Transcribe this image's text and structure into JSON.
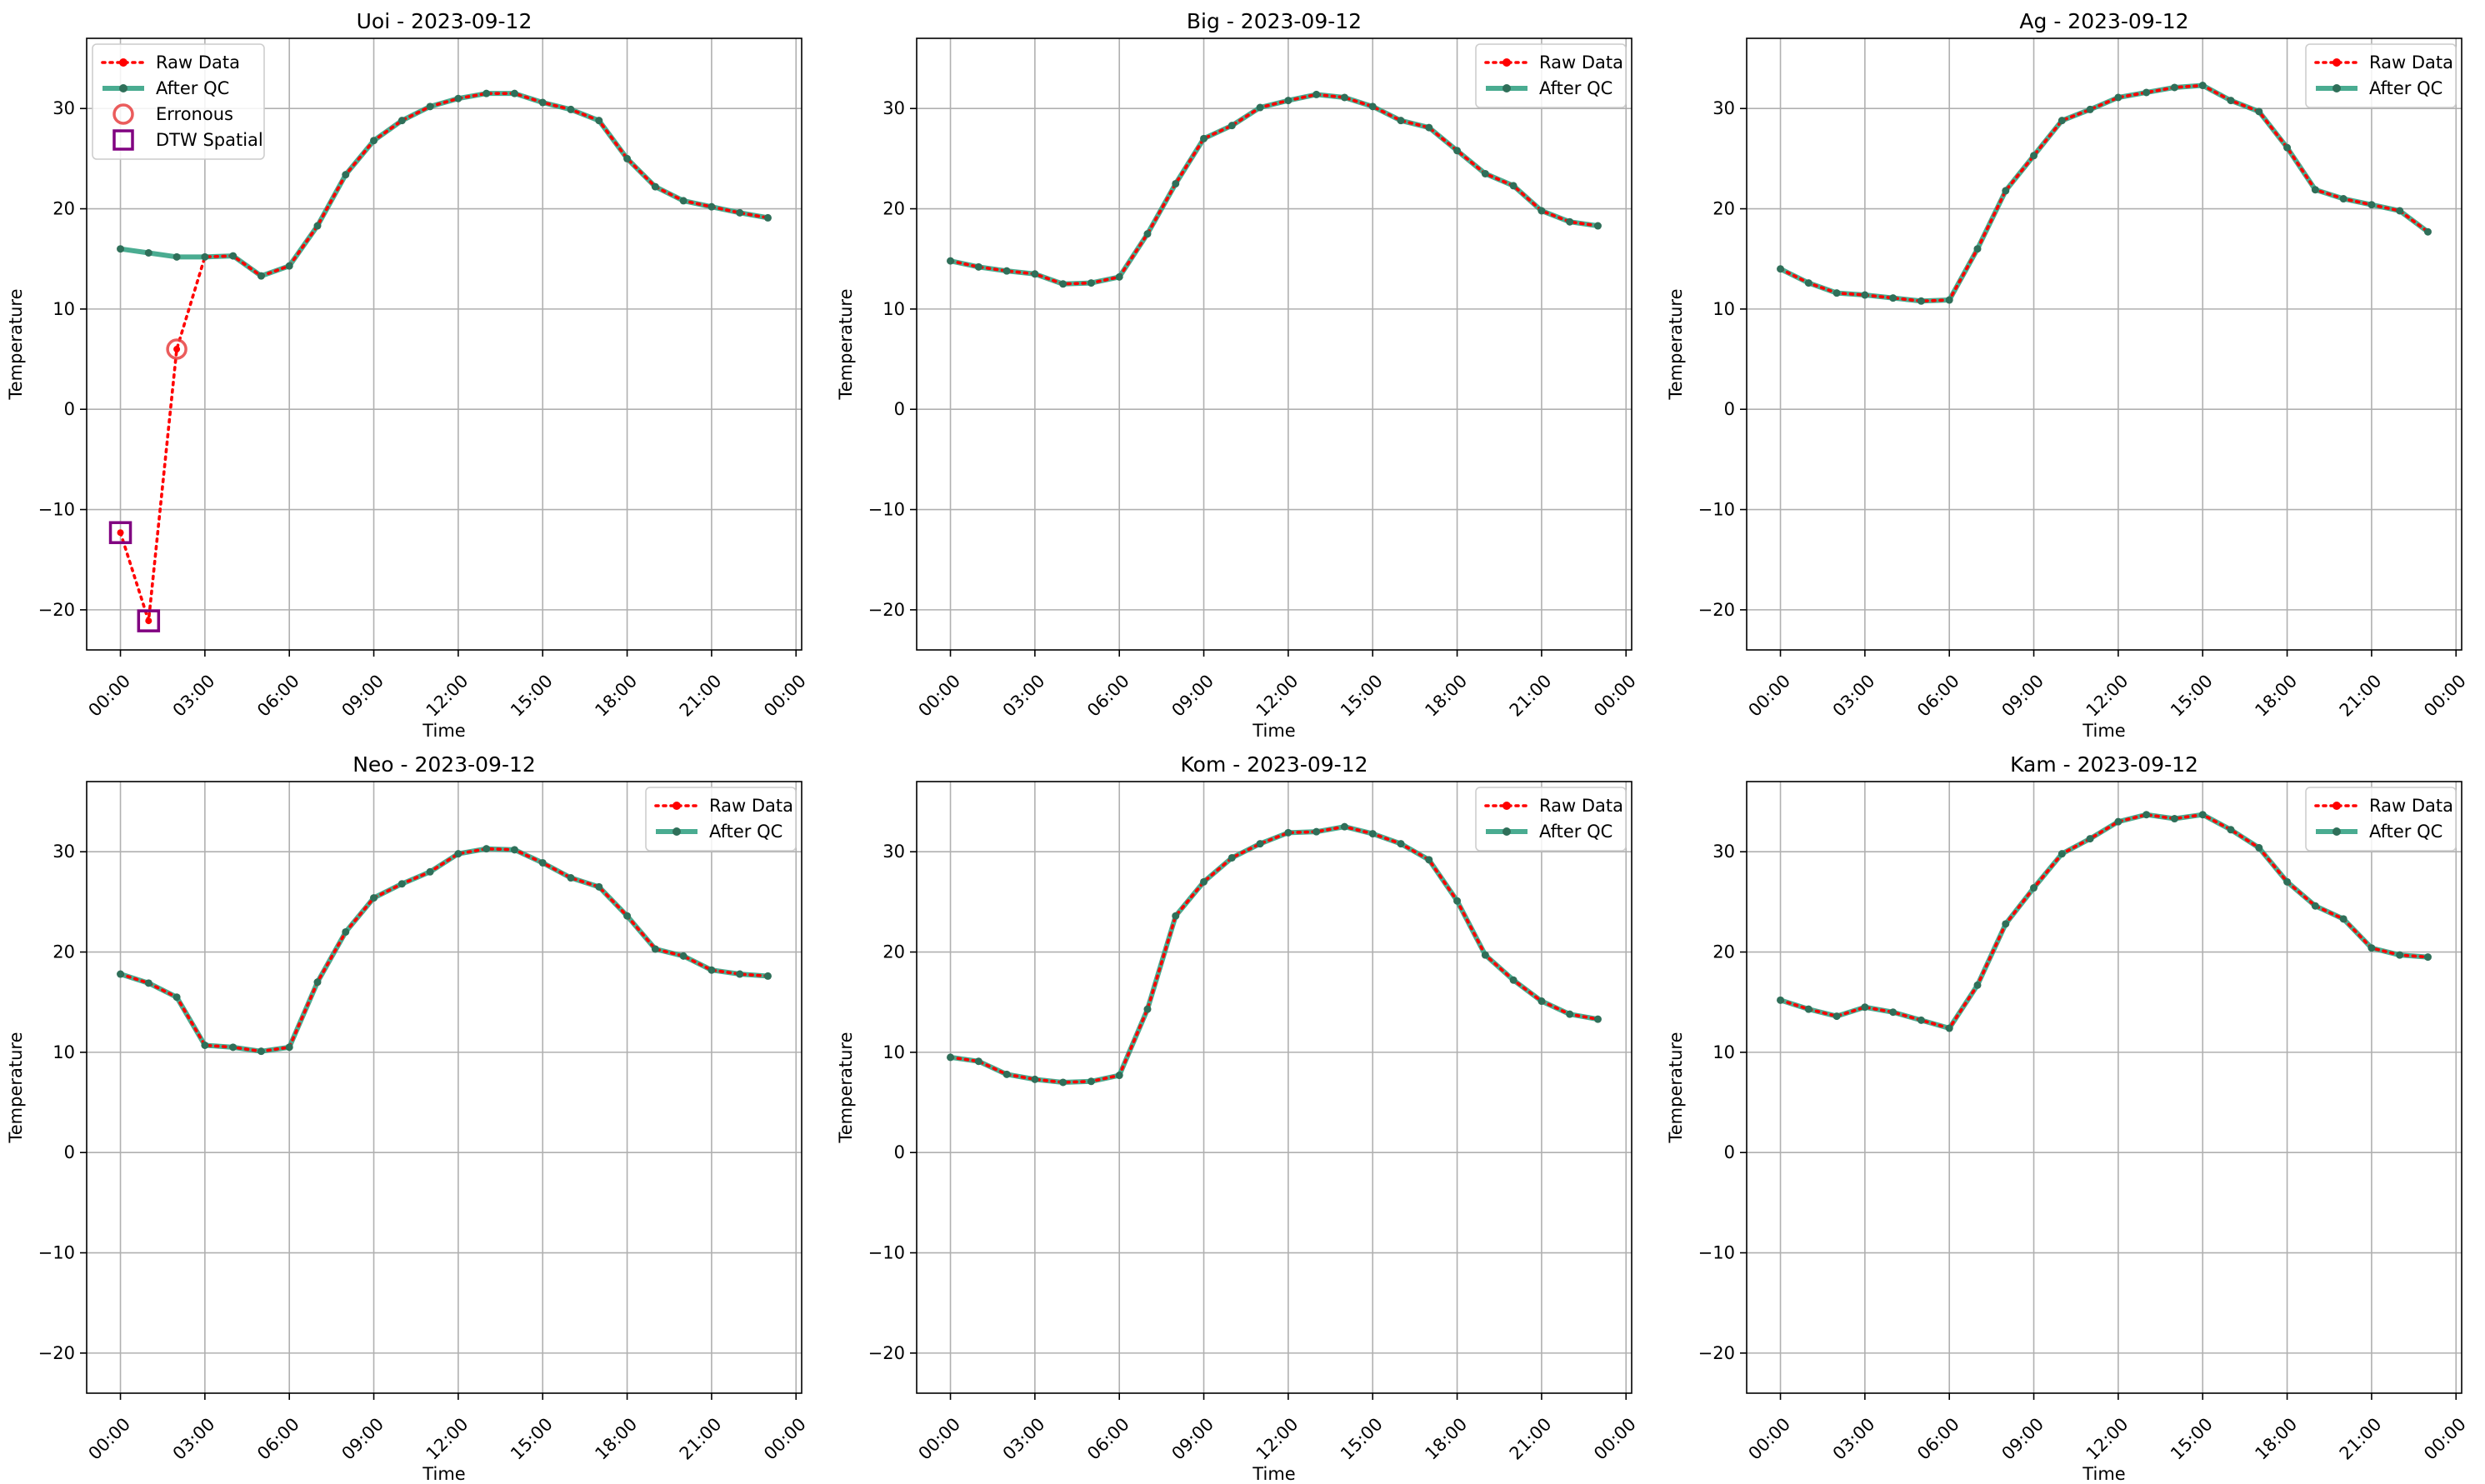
{
  "colors": {
    "raw": "#ff0000",
    "qc": "#2a9d7e",
    "qc_marker": "#2f6f59",
    "erroneous": "#e84040",
    "dtw": "#800080",
    "grid": "#b0b0b0"
  },
  "chart_data": [
    {
      "type": "line",
      "title": "Uoi - 2023-09-12",
      "xlabel": "Time",
      "ylabel": "Temperature",
      "x_ticks": [
        "00:00",
        "03:00",
        "06:00",
        "09:00",
        "12:00",
        "15:00",
        "18:00",
        "21:00",
        "00:00"
      ],
      "y_ticks": [
        -20,
        -10,
        0,
        10,
        20,
        30
      ],
      "xlim": [
        -1.2,
        24.2
      ],
      "ylim": [
        -24,
        37
      ],
      "grid": true,
      "legend_position": "top-left",
      "legend": [
        "Raw Data",
        "After QC",
        "Erronous",
        "DTW Spatial"
      ],
      "series": [
        {
          "name": "Raw Data",
          "x": [
            0,
            1,
            2,
            3,
            4,
            5,
            6,
            7,
            8,
            9,
            10,
            11,
            12,
            13,
            14,
            15,
            16,
            17,
            18,
            19,
            20,
            21,
            22,
            23
          ],
          "values": [
            -12.3,
            -21.1,
            6.0,
            15.2,
            15.3,
            13.3,
            14.3,
            18.3,
            23.4,
            26.8,
            28.8,
            30.2,
            31.0,
            31.5,
            31.5,
            30.6,
            29.9,
            28.8,
            25.0,
            22.2,
            20.8,
            20.2,
            19.6,
            19.1
          ]
        },
        {
          "name": "After QC",
          "x": [
            0,
            1,
            2,
            3,
            4,
            5,
            6,
            7,
            8,
            9,
            10,
            11,
            12,
            13,
            14,
            15,
            16,
            17,
            18,
            19,
            20,
            21,
            22,
            23
          ],
          "values": [
            16.0,
            15.6,
            15.2,
            15.2,
            15.3,
            13.3,
            14.3,
            18.3,
            23.4,
            26.8,
            28.8,
            30.2,
            31.0,
            31.5,
            31.5,
            30.6,
            29.9,
            28.8,
            25.0,
            22.2,
            20.8,
            20.2,
            19.6,
            19.1
          ]
        },
        {
          "name": "Erronous",
          "x": [
            2
          ],
          "values": [
            6.0
          ]
        },
        {
          "name": "DTW Spatial",
          "x": [
            0,
            1
          ],
          "values": [
            -12.3,
            -21.1
          ]
        }
      ]
    },
    {
      "type": "line",
      "title": "Big - 2023-09-12",
      "xlabel": "Time",
      "ylabel": "Temperature",
      "x_ticks": [
        "00:00",
        "03:00",
        "06:00",
        "09:00",
        "12:00",
        "15:00",
        "18:00",
        "21:00",
        "00:00"
      ],
      "y_ticks": [
        -20,
        -10,
        0,
        10,
        20,
        30
      ],
      "xlim": [
        -1.2,
        24.2
      ],
      "ylim": [
        -24,
        37
      ],
      "grid": true,
      "legend_position": "top-right",
      "legend": [
        "Raw Data",
        "After QC"
      ],
      "series": [
        {
          "name": "Raw Data",
          "x": [
            0,
            1,
            2,
            3,
            4,
            5,
            6,
            7,
            8,
            9,
            10,
            11,
            12,
            13,
            14,
            15,
            16,
            17,
            18,
            19,
            20,
            21,
            22,
            23
          ],
          "values": [
            14.8,
            14.2,
            13.8,
            13.5,
            12.5,
            12.6,
            13.2,
            17.5,
            22.5,
            27.0,
            28.3,
            30.1,
            30.8,
            31.4,
            31.1,
            30.2,
            28.8,
            28.1,
            25.8,
            23.5,
            22.3,
            19.8,
            18.7,
            18.3
          ]
        },
        {
          "name": "After QC",
          "x": [
            0,
            1,
            2,
            3,
            4,
            5,
            6,
            7,
            8,
            9,
            10,
            11,
            12,
            13,
            14,
            15,
            16,
            17,
            18,
            19,
            20,
            21,
            22,
            23
          ],
          "values": [
            14.8,
            14.2,
            13.8,
            13.5,
            12.5,
            12.6,
            13.2,
            17.5,
            22.5,
            27.0,
            28.3,
            30.1,
            30.8,
            31.4,
            31.1,
            30.2,
            28.8,
            28.1,
            25.8,
            23.5,
            22.3,
            19.8,
            18.7,
            18.3
          ]
        }
      ]
    },
    {
      "type": "line",
      "title": "Ag - 2023-09-12",
      "xlabel": "Time",
      "ylabel": "Temperature",
      "x_ticks": [
        "00:00",
        "03:00",
        "06:00",
        "09:00",
        "12:00",
        "15:00",
        "18:00",
        "21:00",
        "00:00"
      ],
      "y_ticks": [
        -20,
        -10,
        0,
        10,
        20,
        30
      ],
      "xlim": [
        -1.2,
        24.2
      ],
      "ylim": [
        -24,
        37
      ],
      "grid": true,
      "legend_position": "top-right",
      "legend": [
        "Raw Data",
        "After QC"
      ],
      "series": [
        {
          "name": "Raw Data",
          "x": [
            0,
            1,
            2,
            3,
            4,
            5,
            6,
            7,
            8,
            9,
            10,
            11,
            12,
            13,
            14,
            15,
            16,
            17,
            18,
            19,
            20,
            21,
            22,
            23
          ],
          "values": [
            14.0,
            12.6,
            11.6,
            11.4,
            11.1,
            10.8,
            10.9,
            16.0,
            21.8,
            25.3,
            28.8,
            29.9,
            31.1,
            31.6,
            32.1,
            32.3,
            30.8,
            29.7,
            26.1,
            21.9,
            21.0,
            20.4,
            19.8,
            17.7
          ]
        },
        {
          "name": "After QC",
          "x": [
            0,
            1,
            2,
            3,
            4,
            5,
            6,
            7,
            8,
            9,
            10,
            11,
            12,
            13,
            14,
            15,
            16,
            17,
            18,
            19,
            20,
            21,
            22,
            23
          ],
          "values": [
            14.0,
            12.6,
            11.6,
            11.4,
            11.1,
            10.8,
            10.9,
            16.0,
            21.8,
            25.3,
            28.8,
            29.9,
            31.1,
            31.6,
            32.1,
            32.3,
            30.8,
            29.7,
            26.1,
            21.9,
            21.0,
            20.4,
            19.8,
            17.7
          ]
        }
      ]
    },
    {
      "type": "line",
      "title": "Neo - 2023-09-12",
      "xlabel": "Time",
      "ylabel": "Temperature",
      "x_ticks": [
        "00:00",
        "03:00",
        "06:00",
        "09:00",
        "12:00",
        "15:00",
        "18:00",
        "21:00",
        "00:00"
      ],
      "y_ticks": [
        -20,
        -10,
        0,
        10,
        20,
        30
      ],
      "xlim": [
        -1.2,
        24.2
      ],
      "ylim": [
        -24,
        37
      ],
      "grid": true,
      "legend_position": "top-right",
      "legend": [
        "Raw Data",
        "After QC"
      ],
      "series": [
        {
          "name": "Raw Data",
          "x": [
            0,
            1,
            2,
            3,
            4,
            5,
            6,
            7,
            8,
            9,
            10,
            11,
            12,
            13,
            14,
            15,
            16,
            17,
            18,
            19,
            20,
            21,
            22,
            23
          ],
          "values": [
            17.8,
            16.9,
            15.5,
            10.7,
            10.5,
            10.1,
            10.5,
            17.0,
            22.0,
            25.4,
            26.8,
            28.0,
            29.8,
            30.3,
            30.2,
            28.9,
            27.4,
            26.5,
            23.6,
            20.3,
            19.6,
            18.2,
            17.8,
            17.6
          ]
        },
        {
          "name": "After QC",
          "x": [
            0,
            1,
            2,
            3,
            4,
            5,
            6,
            7,
            8,
            9,
            10,
            11,
            12,
            13,
            14,
            15,
            16,
            17,
            18,
            19,
            20,
            21,
            22,
            23
          ],
          "values": [
            17.8,
            16.9,
            15.5,
            10.7,
            10.5,
            10.1,
            10.5,
            17.0,
            22.0,
            25.4,
            26.8,
            28.0,
            29.8,
            30.3,
            30.2,
            28.9,
            27.4,
            26.5,
            23.6,
            20.3,
            19.6,
            18.2,
            17.8,
            17.6
          ]
        }
      ]
    },
    {
      "type": "line",
      "title": "Kom - 2023-09-12",
      "xlabel": "Time",
      "ylabel": "Temperature",
      "x_ticks": [
        "00:00",
        "03:00",
        "06:00",
        "09:00",
        "12:00",
        "15:00",
        "18:00",
        "21:00",
        "00:00"
      ],
      "y_ticks": [
        -20,
        -10,
        0,
        10,
        20,
        30
      ],
      "xlim": [
        -1.2,
        24.2
      ],
      "ylim": [
        -24,
        37
      ],
      "grid": true,
      "legend_position": "top-right",
      "legend": [
        "Raw Data",
        "After QC"
      ],
      "series": [
        {
          "name": "Raw Data",
          "x": [
            0,
            1,
            2,
            3,
            4,
            5,
            6,
            7,
            8,
            9,
            10,
            11,
            12,
            13,
            14,
            15,
            16,
            17,
            18,
            19,
            20,
            21,
            22,
            23
          ],
          "values": [
            9.5,
            9.1,
            7.8,
            7.3,
            7.0,
            7.1,
            7.7,
            14.3,
            23.6,
            27.0,
            29.4,
            30.8,
            31.9,
            32.0,
            32.5,
            31.8,
            30.8,
            29.2,
            25.1,
            19.7,
            17.2,
            15.1,
            13.8,
            13.3
          ]
        },
        {
          "name": "After QC",
          "x": [
            0,
            1,
            2,
            3,
            4,
            5,
            6,
            7,
            8,
            9,
            10,
            11,
            12,
            13,
            14,
            15,
            16,
            17,
            18,
            19,
            20,
            21,
            22,
            23
          ],
          "values": [
            9.5,
            9.1,
            7.8,
            7.3,
            7.0,
            7.1,
            7.7,
            14.3,
            23.6,
            27.0,
            29.4,
            30.8,
            31.9,
            32.0,
            32.5,
            31.8,
            30.8,
            29.2,
            25.1,
            19.7,
            17.2,
            15.1,
            13.8,
            13.3
          ]
        }
      ]
    },
    {
      "type": "line",
      "title": "Kam - 2023-09-12",
      "xlabel": "Time",
      "ylabel": "Temperature",
      "x_ticks": [
        "00:00",
        "03:00",
        "06:00",
        "09:00",
        "12:00",
        "15:00",
        "18:00",
        "21:00",
        "00:00"
      ],
      "y_ticks": [
        -20,
        -10,
        0,
        10,
        20,
        30
      ],
      "xlim": [
        -1.2,
        24.2
      ],
      "ylim": [
        -24,
        37
      ],
      "grid": true,
      "legend_position": "top-right",
      "legend": [
        "Raw Data",
        "After QC"
      ],
      "series": [
        {
          "name": "Raw Data",
          "x": [
            0,
            1,
            2,
            3,
            4,
            5,
            6,
            7,
            8,
            9,
            10,
            11,
            12,
            13,
            14,
            15,
            16,
            17,
            18,
            19,
            20,
            21,
            22,
            23
          ],
          "values": [
            15.2,
            14.3,
            13.6,
            14.5,
            14.0,
            13.2,
            12.4,
            16.7,
            22.8,
            26.4,
            29.8,
            31.3,
            33.0,
            33.7,
            33.3,
            33.7,
            32.2,
            30.4,
            27.0,
            24.6,
            23.3,
            20.4,
            19.7,
            19.5
          ]
        },
        {
          "name": "After QC",
          "x": [
            0,
            1,
            2,
            3,
            4,
            5,
            6,
            7,
            8,
            9,
            10,
            11,
            12,
            13,
            14,
            15,
            16,
            17,
            18,
            19,
            20,
            21,
            22,
            23
          ],
          "values": [
            15.2,
            14.3,
            13.6,
            14.5,
            14.0,
            13.2,
            12.4,
            16.7,
            22.8,
            26.4,
            29.8,
            31.3,
            33.0,
            33.7,
            33.3,
            33.7,
            32.2,
            30.4,
            27.0,
            24.6,
            23.3,
            20.4,
            19.7,
            19.5
          ]
        }
      ]
    }
  ]
}
